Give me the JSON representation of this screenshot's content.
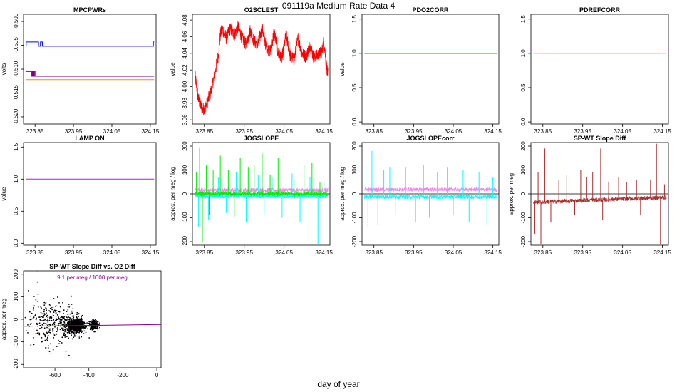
{
  "page": {
    "title": "091119a   Medium Rate Data 4",
    "bottom_label": "day of year"
  },
  "chart_data": [
    {
      "id": "mpcpwrs",
      "type": "line",
      "title": "MPCPWRs",
      "ylabel": "volts",
      "xlim": [
        323.82,
        324.165
      ],
      "ylim": [
        -0.5215,
        -0.4985
      ],
      "xticks": [
        323.85,
        323.95,
        324.05,
        324.15
      ],
      "xtick_labels": [
        "323.85",
        "323.95",
        "324.05",
        "324.15"
      ],
      "yticks": [
        -0.52,
        -0.515,
        -0.51,
        -0.505,
        -0.5
      ],
      "ytick_labels": [
        "-0.520",
        "-0.515",
        "-0.510",
        "-0.505",
        "-0.500"
      ],
      "ytick_rotated": true,
      "series": [
        {
          "color": "#0000ff",
          "style": "step",
          "x": [
            323.826,
            323.827,
            323.829,
            323.83,
            323.835,
            323.858,
            323.859,
            323.863,
            323.864,
            323.868,
            323.869,
            323.873,
            323.874,
            324.157,
            324.158,
            324.16
          ],
          "y": [
            -0.5052,
            -0.5043,
            -0.5043,
            -0.5043,
            -0.5043,
            -0.5043,
            -0.5052,
            -0.5052,
            -0.5043,
            -0.5043,
            -0.5052,
            -0.5052,
            -0.5052,
            -0.5052,
            -0.5043,
            -0.5043
          ]
        },
        {
          "color": "#800080",
          "style": "step",
          "x": [
            323.826,
            323.84,
            323.841,
            323.843,
            323.844,
            323.846,
            323.847,
            323.849,
            323.85,
            323.852,
            323.853,
            324.16
          ],
          "y": [
            -0.5105,
            -0.5105,
            -0.5115,
            -0.5105,
            -0.5115,
            -0.5105,
            -0.5115,
            -0.5105,
            -0.5115,
            -0.5115,
            -0.5115,
            -0.5115
          ]
        },
        {
          "color": "#ff8c00",
          "style": "line",
          "x": [
            323.826,
            324.16
          ],
          "y": [
            -0.5122,
            -0.5122
          ]
        }
      ]
    },
    {
      "id": "o2sclest",
      "type": "line",
      "title": "O2SCLEST",
      "ylabel": "value",
      "xlim": [
        323.82,
        324.165
      ],
      "ylim": [
        3.955,
        4.087
      ],
      "xticks": [
        323.85,
        323.95,
        324.05,
        324.15
      ],
      "xtick_labels": [
        "323.85",
        "323.95",
        "324.05",
        "324.15"
      ],
      "yticks": [
        3.96,
        3.98,
        4.0,
        4.02,
        4.04,
        4.06,
        4.08
      ],
      "ytick_labels": [
        "3.96",
        "3.98",
        "4.00",
        "4.02",
        "4.04",
        "4.06",
        "4.08"
      ],
      "ytick_rotated": true,
      "series": [
        {
          "color": "#ff0000",
          "style": "band",
          "x": [
            323.826,
            323.835,
            323.845,
            323.855,
            323.865,
            323.875,
            323.885,
            323.89,
            323.895,
            323.905,
            323.915,
            323.925,
            323.935,
            323.945,
            323.955,
            323.965,
            323.975,
            323.985,
            323.995,
            324.005,
            324.015,
            324.025,
            324.035,
            324.045,
            324.055,
            324.065,
            324.075,
            324.085,
            324.095,
            324.105,
            324.115,
            324.125,
            324.135,
            324.145,
            324.15,
            324.155,
            324.16
          ],
          "y": [
            4.015,
            3.985,
            3.972,
            3.978,
            3.992,
            4.012,
            4.038,
            4.062,
            4.07,
            4.058,
            4.07,
            4.062,
            4.072,
            4.058,
            4.05,
            4.068,
            4.054,
            4.052,
            4.07,
            4.048,
            4.042,
            4.066,
            4.04,
            4.034,
            4.062,
            4.038,
            4.032,
            4.058,
            4.04,
            4.036,
            4.05,
            4.034,
            4.038,
            4.042,
            4.056,
            4.03,
            4.014
          ],
          "spread": 0.008
        }
      ]
    },
    {
      "id": "pdo2corr",
      "type": "line",
      "title": "PDO2CORR",
      "ylabel": "value",
      "xlim": [
        323.82,
        324.165
      ],
      "ylim": [
        -0.03,
        1.57
      ],
      "xticks": [
        323.85,
        323.95,
        324.05,
        324.15
      ],
      "xtick_labels": [
        "323.85",
        "323.95",
        "324.05",
        "324.15"
      ],
      "yticks": [
        0.0,
        0.5,
        1.0,
        1.5
      ],
      "ytick_labels": [
        "0.0",
        "0.5",
        "1.0",
        "1.5"
      ],
      "ytick_rotated": true,
      "series": [
        {
          "color": "#006400",
          "style": "line",
          "x": [
            323.826,
            324.16
          ],
          "y": [
            1.0,
            1.0
          ]
        }
      ]
    },
    {
      "id": "pdrefcorr",
      "type": "line",
      "title": "PDREFCORR",
      "ylabel": "",
      "xlim": [
        323.82,
        324.165
      ],
      "ylim": [
        -0.03,
        1.57
      ],
      "xticks": [
        323.85,
        323.95,
        324.05,
        324.15
      ],
      "xtick_labels": [
        "323.85",
        "323.95",
        "324.05",
        "324.15"
      ],
      "yticks": [
        0.0,
        0.5,
        1.0,
        1.5
      ],
      "ytick_labels": [
        "0.0",
        "0.5",
        "1.0",
        "1.5"
      ],
      "ytick_rotated": true,
      "series": [
        {
          "color": "#ffa500",
          "style": "line",
          "x": [
            323.826,
            324.16
          ],
          "y": [
            1.0,
            1.0
          ]
        }
      ]
    },
    {
      "id": "lampon",
      "type": "line",
      "title": "LAMP ON",
      "ylabel": "value",
      "xlim": [
        323.82,
        324.165
      ],
      "ylim": [
        -0.03,
        1.57
      ],
      "xticks": [
        323.85,
        323.95,
        324.05,
        324.15
      ],
      "xtick_labels": [
        "323.85",
        "323.95",
        "324.05",
        "324.15"
      ],
      "yticks": [
        0.0,
        0.5,
        1.0,
        1.5
      ],
      "ytick_labels": [
        "0.0",
        "0.5",
        "1.0",
        "1.5"
      ],
      "ytick_rotated": true,
      "series": [
        {
          "color": "#a020f0",
          "style": "line",
          "x": [
            323.826,
            324.16
          ],
          "y": [
            1.0,
            1.0
          ]
        }
      ]
    },
    {
      "id": "jogslope",
      "type": "line",
      "title": "JOGSLOPE",
      "ylabel": "approx. per meg / log",
      "xlim": [
        323.82,
        324.165
      ],
      "ylim": [
        -215,
        215
      ],
      "xticks": [
        323.85,
        323.95,
        324.05,
        324.15
      ],
      "xtick_labels": [
        "323.85",
        "323.95",
        "324.05",
        "324.15"
      ],
      "yticks": [
        -200,
        -100,
        0,
        100,
        200
      ],
      "ytick_labels": [
        "-200",
        "-100",
        "0",
        "100",
        "200"
      ],
      "ytick_rotated": true,
      "hline": 0,
      "series": [
        {
          "color": "#ee82ee",
          "style": "noise",
          "x0": 323.826,
          "x1": 324.16,
          "base": 15,
          "amp": 10,
          "spikes": []
        },
        {
          "color": "#00ffff",
          "style": "noise",
          "x0": 323.826,
          "x1": 324.16,
          "base": -10,
          "amp": 8,
          "spikes": [
            [
              323.835,
              -140
            ],
            [
              323.86,
              -110
            ],
            [
              323.885,
              70
            ],
            [
              323.905,
              -80
            ],
            [
              323.93,
              90
            ],
            [
              323.955,
              -120
            ],
            [
              323.985,
              80
            ],
            [
              324.0,
              -90
            ],
            [
              324.02,
              70
            ],
            [
              324.045,
              -100
            ],
            [
              324.07,
              85
            ],
            [
              324.09,
              -120
            ],
            [
              324.115,
              70
            ],
            [
              324.135,
              -210
            ],
            [
              324.15,
              60
            ]
          ]
        },
        {
          "color": "#00ee00",
          "style": "noise",
          "x0": 323.826,
          "x1": 324.16,
          "base": 0,
          "amp": 9,
          "spikes": [
            [
              323.83,
              90
            ],
            [
              323.838,
              195
            ],
            [
              323.845,
              -200
            ],
            [
              323.855,
              120
            ],
            [
              323.862,
              -90
            ],
            [
              323.872,
              100
            ],
            [
              323.89,
              160
            ],
            [
              323.91,
              100
            ],
            [
              323.925,
              -100
            ],
            [
              323.94,
              150
            ],
            [
              323.96,
              110
            ],
            [
              323.975,
              120
            ],
            [
              323.995,
              170
            ],
            [
              324.015,
              80
            ],
            [
              324.035,
              150
            ],
            [
              324.055,
              90
            ],
            [
              324.075,
              60
            ],
            [
              324.1,
              120
            ],
            [
              324.12,
              130
            ],
            [
              324.14,
              50
            ],
            [
              324.155,
              40
            ]
          ]
        }
      ]
    },
    {
      "id": "jogslopecorr",
      "type": "line",
      "title": "JOGSLOPEcorr",
      "ylabel": "approx. per meg / log",
      "xlim": [
        323.82,
        324.165
      ],
      "ylim": [
        -215,
        215
      ],
      "xticks": [
        323.85,
        323.95,
        324.05,
        324.15
      ],
      "xtick_labels": [
        "323.85",
        "323.95",
        "324.05",
        "324.15"
      ],
      "yticks": [
        -200,
        -100,
        0,
        100,
        200
      ],
      "ytick_labels": [
        "-200",
        "-100",
        "0",
        "100",
        "200"
      ],
      "ytick_rotated": true,
      "hline": 0,
      "series": [
        {
          "color": "#ee82ee",
          "style": "noise",
          "x0": 323.826,
          "x1": 324.16,
          "base": 18,
          "amp": 8,
          "spikes": []
        },
        {
          "color": "#00ffff",
          "style": "noise",
          "x0": 323.826,
          "x1": 324.16,
          "base": -12,
          "amp": 9,
          "spikes": [
            [
              323.83,
              120
            ],
            [
              323.835,
              -140
            ],
            [
              323.845,
              180
            ],
            [
              323.86,
              -130
            ],
            [
              323.875,
              100
            ],
            [
              323.89,
              110
            ],
            [
              323.905,
              -90
            ],
            [
              323.93,
              110
            ],
            [
              323.955,
              -120
            ],
            [
              323.975,
              120
            ],
            [
              323.99,
              -100
            ],
            [
              324.01,
              90
            ],
            [
              324.035,
              110
            ],
            [
              324.05,
              -90
            ],
            [
              324.075,
              100
            ],
            [
              324.09,
              -120
            ],
            [
              324.115,
              90
            ],
            [
              324.135,
              -130
            ],
            [
              324.15,
              70
            ]
          ]
        }
      ]
    },
    {
      "id": "spwt",
      "type": "line",
      "title": "SP-WT Slope Diff",
      "ylabel": "approx. per meg",
      "xlim": [
        323.82,
        324.165
      ],
      "ylim": [
        -215,
        215
      ],
      "xticks": [
        323.85,
        323.95,
        324.05,
        324.15
      ],
      "xtick_labels": [
        "323.85",
        "323.95",
        "324.05",
        "324.15"
      ],
      "yticks": [
        -200,
        -100,
        0,
        100,
        200
      ],
      "ytick_labels": [
        "-200",
        "-100",
        "0",
        "100",
        "200"
      ],
      "ytick_rotated": true,
      "hline": 0,
      "series": [
        {
          "color": "#a52a2a",
          "style": "noise",
          "x0": 323.826,
          "x1": 324.16,
          "base_from": -35,
          "base_to": -15,
          "amp": 9,
          "spikes": [
            [
              323.83,
              -170
            ],
            [
              323.838,
              90
            ],
            [
              323.845,
              -210
            ],
            [
              323.855,
              190
            ],
            [
              323.87,
              -120
            ],
            [
              323.89,
              60
            ],
            [
              323.91,
              80
            ],
            [
              323.93,
              -90
            ],
            [
              323.945,
              100
            ],
            [
              323.96,
              70
            ],
            [
              323.975,
              90
            ],
            [
              323.995,
              190
            ],
            [
              324.0,
              -110
            ],
            [
              324.015,
              50
            ],
            [
              324.04,
              70
            ],
            [
              324.06,
              50
            ],
            [
              324.085,
              60
            ],
            [
              324.095,
              -90
            ],
            [
              324.12,
              60
            ],
            [
              324.135,
              210
            ],
            [
              324.145,
              -210
            ],
            [
              324.155,
              40
            ]
          ]
        }
      ]
    },
    {
      "id": "spwt_vs_o2",
      "type": "scatter",
      "title": "SP-WT Slope Diff vs. O2 Diff",
      "ylabel": "approx. per meg",
      "xlim": [
        -785,
        25
      ],
      "ylim": [
        -215,
        215
      ],
      "xticks": [
        -600,
        -400,
        -200,
        0
      ],
      "xtick_labels": [
        "-600",
        "-400",
        "-200",
        "0"
      ],
      "yticks": [
        -200,
        -100,
        0,
        100,
        200
      ],
      "ytick_labels": [
        "-200",
        "-100",
        "0",
        "100",
        "200"
      ],
      "ytick_rotated": true,
      "annotation": "9.1 per meg / 1000 per meg",
      "fit_line": {
        "color": "#8B008B",
        "x": [
          -785,
          25
        ],
        "y": [
          -31,
          -23
        ]
      },
      "clusters": [
        {
          "cx": -480,
          "cy": -28,
          "sx": 22,
          "sy": 14,
          "n": 1100
        },
        {
          "cx": -370,
          "cy": -25,
          "sx": 14,
          "sy": 10,
          "n": 220
        },
        {
          "cx": -560,
          "cy": -20,
          "sx": 70,
          "sy": 45,
          "n": 260
        },
        {
          "cx": -680,
          "cy": -15,
          "sx": 60,
          "sy": 70,
          "n": 90
        }
      ]
    }
  ]
}
